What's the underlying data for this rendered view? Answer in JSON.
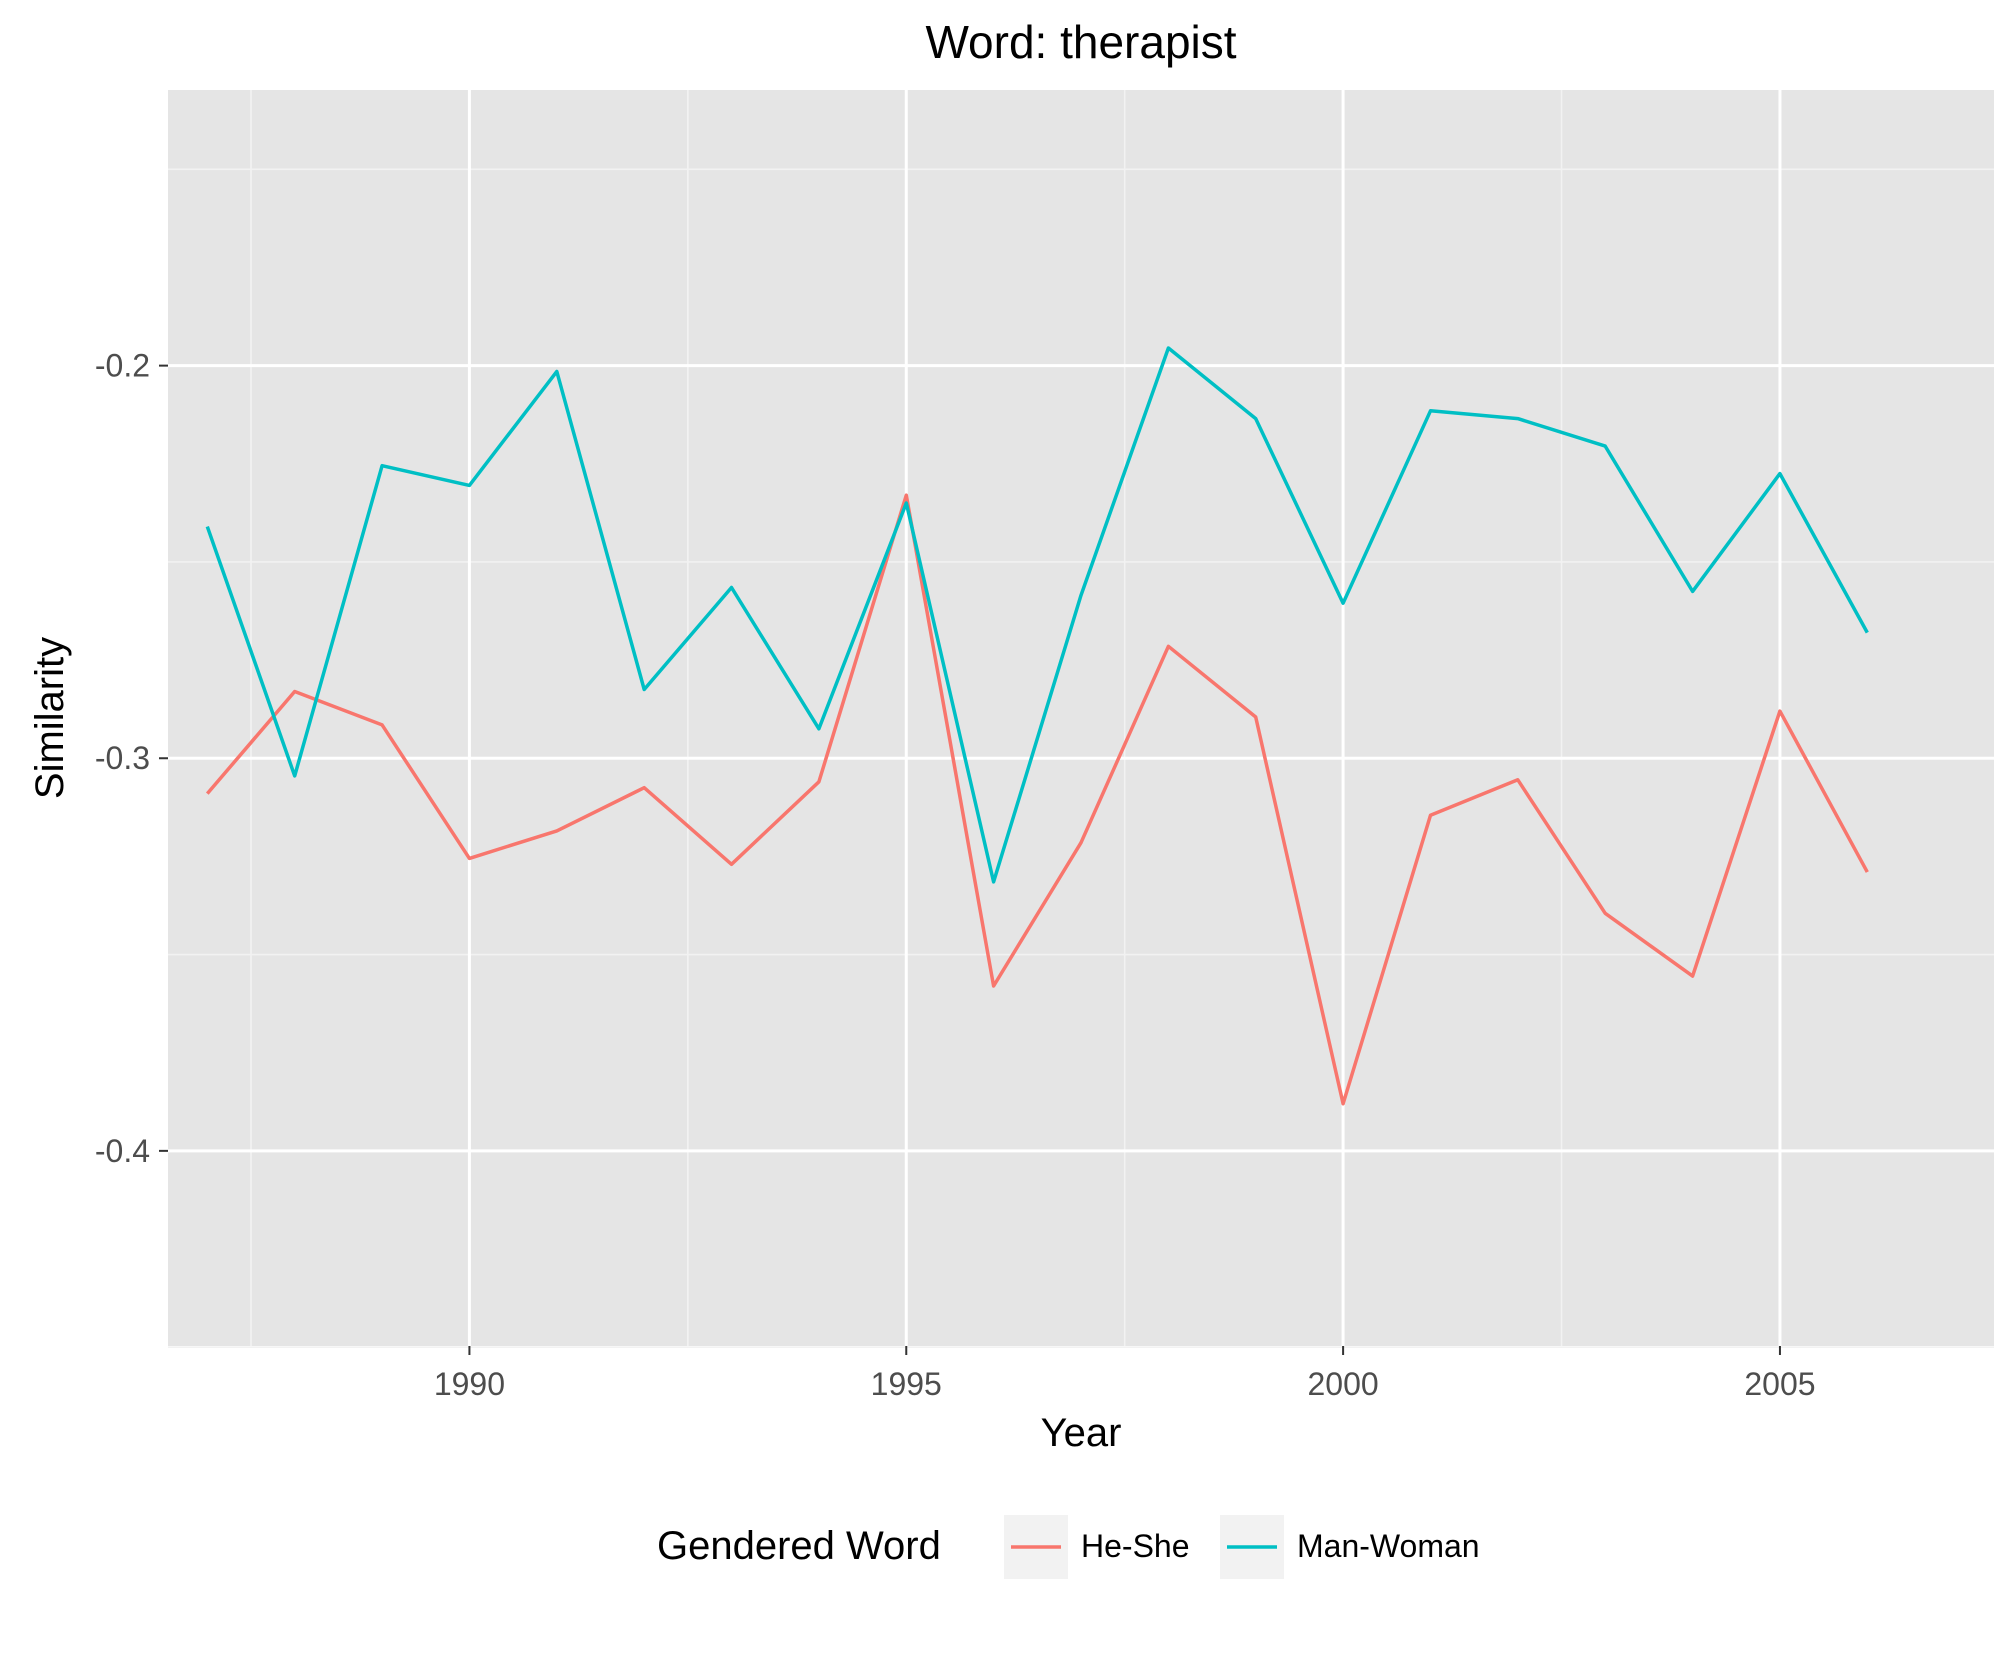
{
  "chart_data": {
    "type": "line",
    "title": "Word: therapist",
    "xlabel": "Year",
    "ylabel": "Similarity",
    "xlim": [
      1986.55,
      2007.45
    ],
    "ylim": [
      -0.4497,
      -0.1298
    ],
    "x_ticks": [
      1990,
      1995,
      2000,
      2005
    ],
    "x_tick_labels": [
      "1990",
      "1995",
      "2000",
      "2005"
    ],
    "x_minor_ticks": [
      1987.5,
      1992.5,
      1997.5,
      2002.5
    ],
    "y_ticks": [
      -0.2,
      -0.3,
      -0.4
    ],
    "y_tick_labels": [
      "-0.2",
      "-0.3",
      "-0.4"
    ],
    "y_minor_ticks": [
      -0.15,
      -0.25,
      -0.35,
      -0.45
    ],
    "grid": true,
    "legend": {
      "title": "Gendered Word",
      "position": "bottom"
    },
    "x": [
      1987,
      1988,
      1989,
      1990,
      1991,
      1992,
      1993,
      1994,
      1995,
      1996,
      1997,
      1998,
      1999,
      2000,
      2001,
      2002,
      2003,
      2004,
      2005,
      2006
    ],
    "series": [
      {
        "name": "He-She",
        "color": "#F8766D",
        "values": [
          -0.309,
          -0.283,
          -0.2915,
          -0.3255,
          -0.3185,
          -0.3075,
          -0.327,
          -0.306,
          -0.233,
          -0.358,
          -0.3215,
          -0.2715,
          -0.2895,
          -0.388,
          -0.3145,
          -0.3055,
          -0.3395,
          -0.3555,
          -0.288,
          -0.329
        ]
      },
      {
        "name": "Man-Woman",
        "color": "#00BFC4",
        "values": [
          -0.241,
          -0.3045,
          -0.2255,
          -0.2305,
          -0.2015,
          -0.2825,
          -0.2565,
          -0.2925,
          -0.235,
          -0.3315,
          -0.2585,
          -0.1955,
          -0.2135,
          -0.2605,
          -0.2115,
          -0.2135,
          -0.2205,
          -0.2575,
          -0.2275,
          -0.268
        ]
      }
    ]
  }
}
